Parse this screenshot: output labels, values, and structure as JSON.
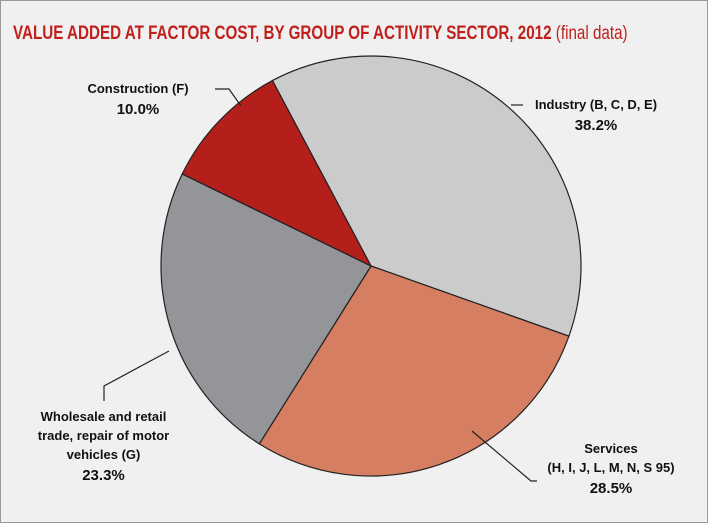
{
  "chart_data": {
    "type": "pie",
    "title": "VALUE ADDED AT FACTOR COST, BY GROUP OF ACTIVITY SECTOR, 2012",
    "subtitle": "(final data)",
    "categories": [
      "Industry (B, C, D, E)",
      "Services\n(H, I, J, L, M, N, S 95)",
      "Wholesale and retail\ntrade, repair of motor\nvehicles (G)",
      "Construction (F)"
    ],
    "values": [
      38.2,
      28.5,
      23.3,
      10
    ],
    "value_labels": [
      "38.2%",
      "28.5%",
      "23.3%",
      "10.0%"
    ],
    "colors": [
      "#cbcbcc",
      "#d67e61",
      "#939598",
      "#b51f1b"
    ]
  }
}
